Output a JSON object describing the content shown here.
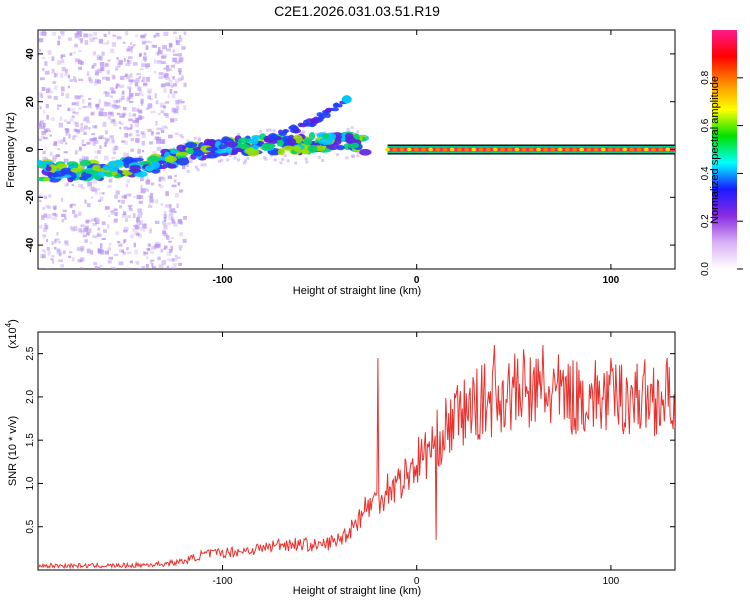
{
  "page_title": "C2E1.2026.031.03.51.R19",
  "colors": {
    "snr_line": "#e8322e",
    "trace_core": "#f0304a",
    "axis": "#000000",
    "scatter": "#b48cf0"
  },
  "chart_data": [
    {
      "type": "heatmap",
      "title": "C2E1.2026.031.03.51.R19",
      "xlabel": "Height of straight line (km)",
      "ylabel": "Frequency (Hz)",
      "xlim": [
        -195,
        133
      ],
      "ylim": [
        -50,
        50
      ],
      "xticks": [
        -100,
        0,
        100
      ],
      "xtick_labels": [
        "-100",
        "0",
        "100"
      ],
      "yticks": [
        -40,
        -20,
        0,
        20,
        40
      ],
      "ytick_labels": [
        "-40",
        "-20",
        "0",
        "20",
        "40"
      ],
      "colorbar": {
        "label": "Normalized spectral amplitude",
        "range": [
          0,
          1
        ],
        "ticks": [
          0.0,
          0.2,
          0.4,
          0.6,
          0.8
        ],
        "tick_labels": [
          "0.0",
          "0.2",
          "0.4",
          "0.6",
          "0.8"
        ],
        "stops": [
          "#ffffff",
          "#d9b0f5",
          "#8a2be2",
          "#1a1aff",
          "#00ffff",
          "#00e000",
          "#ffff00",
          "#ff8c00",
          "#ff0000",
          "#ff1a8c"
        ]
      },
      "trace": {
        "x": [
          -195,
          -180,
          -160,
          -140,
          -120,
          -100,
          -80,
          -60,
          -45,
          -35,
          -28,
          -22,
          -10,
          0,
          20,
          60,
          100,
          133
        ],
        "y": [
          -9,
          -9,
          -9,
          -7,
          -2,
          1,
          2,
          2,
          3,
          4,
          2,
          -2,
          -1,
          0,
          0,
          0,
          0,
          0
        ]
      },
      "branch": {
        "x": [
          -75,
          -60,
          -48,
          -40,
          -36
        ],
        "y": [
          5,
          9,
          14,
          18,
          21
        ]
      }
    },
    {
      "type": "line",
      "title": "",
      "xlabel": "Height of straight line (km)",
      "ylabel": "SNR (10 * v/v)",
      "y_multiplier_label": "(x10",
      "y_multiplier_exponent": "4",
      "xlim": [
        -195,
        133
      ],
      "ylim": [
        0,
        2.75
      ],
      "xticks": [
        -100,
        0,
        100
      ],
      "xtick_labels": [
        "-100",
        "0",
        "100"
      ],
      "yticks": [
        0.5,
        1.0,
        1.5,
        2.0,
        2.5
      ],
      "ytick_labels": [
        "0.5",
        "1.0",
        "1.5",
        "2.0",
        "2.5"
      ],
      "series": [
        {
          "name": "SNR",
          "x": [
            -195,
            -150,
            -130,
            -120,
            -110,
            -100,
            -90,
            -80,
            -70,
            -60,
            -50,
            -40,
            -35,
            -30,
            -25,
            -20,
            -15,
            -10,
            -5,
            0,
            5,
            10,
            20,
            30,
            40,
            50,
            60,
            70,
            80,
            90,
            100,
            110,
            120,
            133
          ],
          "y": [
            0.05,
            0.05,
            0.07,
            0.1,
            0.18,
            0.2,
            0.22,
            0.25,
            0.3,
            0.3,
            0.28,
            0.35,
            0.45,
            0.6,
            0.75,
            0.8,
            0.95,
            1.0,
            1.1,
            1.25,
            1.35,
            1.5,
            1.75,
            1.9,
            2.0,
            2.05,
            2.05,
            2.05,
            2.0,
            2.0,
            2.0,
            2.0,
            2.0,
            2.0
          ]
        }
      ],
      "spikes": {
        "x": [
          -20,
          10,
          40,
          55,
          65
        ],
        "y": [
          2.45,
          0.35,
          2.6,
          2.55,
          2.6
        ]
      }
    }
  ]
}
